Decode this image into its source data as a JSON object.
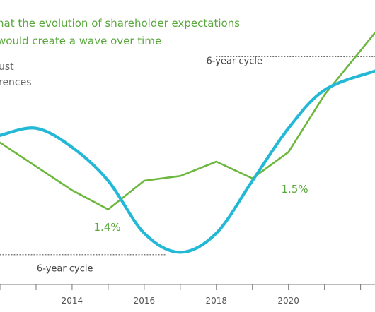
{
  "chart_data": {
    "type": "line",
    "title": "hat the evolution of shareholder expectations would create a wave over time",
    "title_lines": [
      "hat the evolution of shareholder expectations",
      "would create a wave over time"
    ],
    "legend_partial": [
      "ust",
      "rences"
    ],
    "xlim": [
      2012,
      2022.4
    ],
    "ylim": [
      0,
      100
    ],
    "x_ticks": [
      2014,
      2016,
      2018,
      2020
    ],
    "x_tick_labels": [
      "2014",
      "2016",
      "2018",
      "2020"
    ],
    "series": [
      {
        "color": "#6cb83f",
        "line_width": 2.6,
        "points": [
          {
            "x": 2012,
            "y": 58
          },
          {
            "x": 2014,
            "y": 38
          },
          {
            "x": 2015,
            "y": 30
          },
          {
            "x": 2016,
            "y": 42
          },
          {
            "x": 2017,
            "y": 44
          },
          {
            "x": 2018,
            "y": 50
          },
          {
            "x": 2019,
            "y": 43
          },
          {
            "x": 2020,
            "y": 54
          },
          {
            "x": 2021,
            "y": 78
          },
          {
            "x": 2022.4,
            "y": 104
          }
        ]
      },
      {
        "color": "#23b8d6",
        "line_width": 4.2,
        "points": [
          {
            "x": 2012,
            "y": 61
          },
          {
            "x": 2013,
            "y": 64
          },
          {
            "x": 2014,
            "y": 56
          },
          {
            "x": 2015,
            "y": 42
          },
          {
            "x": 2016,
            "y": 20
          },
          {
            "x": 2017,
            "y": 12
          },
          {
            "x": 2018,
            "y": 20
          },
          {
            "x": 2019,
            "y": 42
          },
          {
            "x": 2020,
            "y": 64
          },
          {
            "x": 2021,
            "y": 80
          },
          {
            "x": 2022.4,
            "y": 88
          }
        ]
      }
    ],
    "annotations": [
      {
        "text": "6-year cycle",
        "x": 2018.5,
        "y": 91,
        "type": "cycle"
      },
      {
        "text": "6-year cycle",
        "x": 2013.8,
        "y": 4,
        "type": "cycle"
      },
      {
        "text": "1.4%",
        "x": 2014.6,
        "y": 21,
        "type": "value"
      },
      {
        "text": "1.5%",
        "x": 2019.8,
        "y": 37,
        "type": "value"
      }
    ]
  }
}
